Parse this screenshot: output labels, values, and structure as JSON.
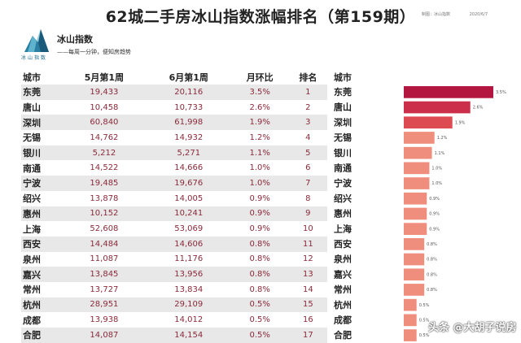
{
  "header": {
    "title": "62城二手房冰山指数涨幅排名（第159期）",
    "meta_left": "制图：冰山指数",
    "meta_right": "2020/6/7"
  },
  "brand": {
    "name": "冰山指数",
    "logo_text": "冰山指数",
    "slogan": "——每周一分钟，便知房趋势"
  },
  "table": {
    "headers": [
      "城市",
      "5月第1周",
      "6月第1周",
      "月环比",
      "排名"
    ],
    "rows": [
      [
        "东莞",
        "19,433",
        "20,116",
        "3.5%",
        "1"
      ],
      [
        "唐山",
        "10,458",
        "10,733",
        "2.6%",
        "2"
      ],
      [
        "深圳",
        "60,840",
        "61,998",
        "1.9%",
        "3"
      ],
      [
        "无锡",
        "14,762",
        "14,932",
        "1.2%",
        "4"
      ],
      [
        "银川",
        "5,212",
        "5,271",
        "1.1%",
        "5"
      ],
      [
        "南通",
        "14,522",
        "14,666",
        "1.0%",
        "6"
      ],
      [
        "宁波",
        "19,485",
        "19,676",
        "1.0%",
        "7"
      ],
      [
        "绍兴",
        "13,878",
        "14,005",
        "0.9%",
        "8"
      ],
      [
        "惠州",
        "10,152",
        "10,241",
        "0.9%",
        "9"
      ],
      [
        "上海",
        "52,608",
        "53,069",
        "0.9%",
        "10"
      ],
      [
        "西安",
        "14,484",
        "14,606",
        "0.8%",
        "11"
      ],
      [
        "泉州",
        "11,087",
        "11,176",
        "0.8%",
        "12"
      ],
      [
        "嘉兴",
        "13,845",
        "13,956",
        "0.8%",
        "13"
      ],
      [
        "常州",
        "13,727",
        "13,834",
        "0.8%",
        "14"
      ],
      [
        "杭州",
        "28,951",
        "29,109",
        "0.5%",
        "15"
      ],
      [
        "成都",
        "13,938",
        "14,012",
        "0.5%",
        "16"
      ],
      [
        "合肥",
        "14,087",
        "14,154",
        "0.5%",
        "17"
      ]
    ]
  },
  "chart_data": {
    "type": "bar",
    "orientation": "horizontal",
    "category_header": "城市",
    "categories": [
      "东莞",
      "唐山",
      "深圳",
      "无锡",
      "银川",
      "南通",
      "宁波",
      "绍兴",
      "惠州",
      "上海",
      "西安",
      "泉州",
      "嘉兴",
      "常州",
      "杭州",
      "成都",
      "合肥"
    ],
    "values": [
      3.5,
      2.6,
      1.9,
      1.2,
      1.1,
      1.0,
      1.0,
      0.9,
      0.9,
      0.9,
      0.8,
      0.8,
      0.8,
      0.8,
      0.5,
      0.5,
      0.5
    ],
    "value_labels": [
      "3.5%",
      "2.6%",
      "1.9%",
      "1.2%",
      "1.1%",
      "1.0%",
      "1.0%",
      "0.9%",
      "0.9%",
      "0.9%",
      "0.8%",
      "0.8%",
      "0.8%",
      "0.8%",
      "0.5%",
      "0.5%",
      "0.5%"
    ],
    "colors": [
      "#b3163e",
      "#cc2f4a",
      "#de4a52",
      "#f08e7e",
      "#f08e7e",
      "#f08e7e",
      "#f08e7e",
      "#f08e7e",
      "#f08e7e",
      "#f08e7e",
      "#f08e7e",
      "#f08e7e",
      "#f08e7e",
      "#f08e7e",
      "#f08e7e",
      "#f08e7e",
      "#f08e7e"
    ],
    "title": "",
    "xlabel": "",
    "ylabel": "",
    "xlim": [
      0,
      3.5
    ],
    "grid": false,
    "legend": "none"
  },
  "watermark": "头条 @大胡子说房"
}
